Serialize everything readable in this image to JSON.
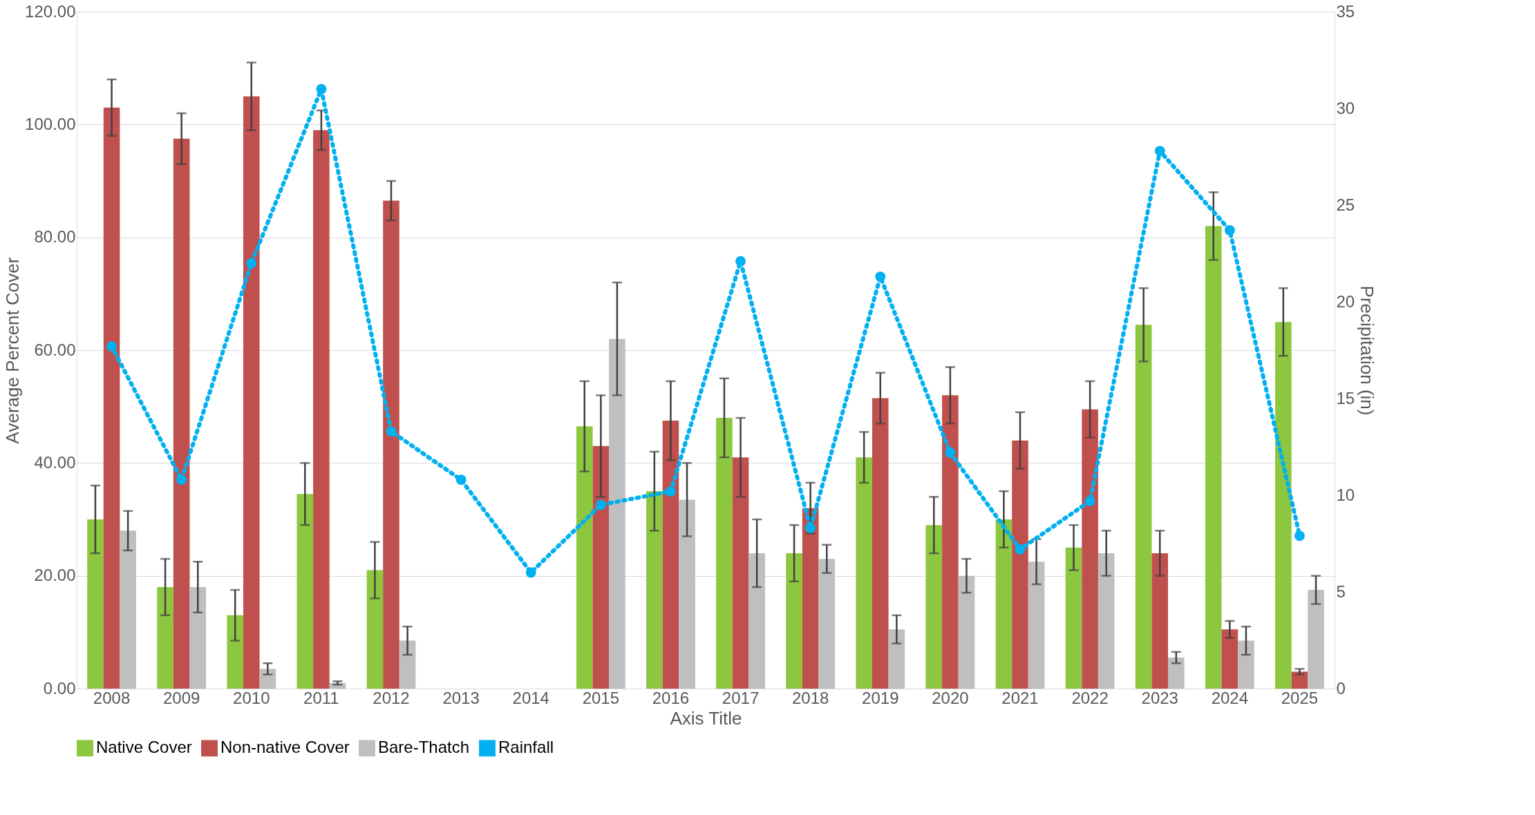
{
  "chart_data": {
    "type": "bar",
    "xlabel": "Axis Title",
    "ylabel": "Average Percent Cover",
    "y2label": "Precipitation (in)",
    "categories": [
      "2008",
      "2009",
      "2010",
      "2011",
      "2012",
      "2013",
      "2014",
      "2015",
      "2016",
      "2017",
      "2018",
      "2019",
      "2020",
      "2021",
      "2022",
      "2023",
      "2024",
      "2025"
    ],
    "series": [
      {
        "name": "Native Cover",
        "color": "#8dc63f",
        "values": [
          30,
          18,
          13,
          34.5,
          21,
          null,
          null,
          46.5,
          35,
          48,
          24,
          41,
          29,
          30,
          25,
          64.5,
          82,
          65
        ],
        "errors": [
          6,
          5,
          4.5,
          5.5,
          5,
          null,
          null,
          8,
          7,
          7,
          5,
          4.5,
          5,
          5,
          4,
          6.5,
          6,
          6
        ]
      },
      {
        "name": "Non-native Cover",
        "color": "#c0504d",
        "values": [
          103,
          97.5,
          105,
          99,
          86.5,
          null,
          null,
          43,
          47.5,
          41,
          32,
          51.5,
          52,
          44,
          49.5,
          24,
          10.5,
          3
        ],
        "errors": [
          5,
          4.5,
          6,
          3.5,
          3.5,
          null,
          null,
          9,
          7,
          7,
          4.5,
          4.5,
          5,
          5,
          5,
          4,
          1.5,
          0.5
        ]
      },
      {
        "name": "Bare-Thatch",
        "color": "#bfbfbf",
        "values": [
          28,
          18,
          3.5,
          1,
          8.5,
          null,
          null,
          62,
          33.5,
          24,
          23,
          10.5,
          20,
          22.5,
          24,
          5.5,
          8.5,
          17.5
        ],
        "errors": [
          3.5,
          4.5,
          1,
          0.3,
          2.5,
          null,
          null,
          10,
          6.5,
          6,
          2.5,
          2.5,
          3,
          4,
          4,
          1,
          2.5,
          2.5
        ]
      },
      {
        "name": "Rainfall",
        "type": "line",
        "axis": "y2",
        "color": "#00b0f0",
        "line_style": "dotted",
        "marker": "circle",
        "values": [
          17.7,
          10.8,
          22.0,
          31.0,
          13.3,
          10.8,
          6.0,
          9.5,
          10.2,
          22.1,
          8.3,
          21.3,
          12.2,
          7.2,
          9.7,
          27.8,
          23.7,
          7.9
        ]
      }
    ],
    "ylim": [
      0,
      120
    ],
    "yticks": [
      {
        "value": 0,
        "label": "0.00"
      },
      {
        "value": 20,
        "label": "20.00"
      },
      {
        "value": 40,
        "label": "40.00"
      },
      {
        "value": 60,
        "label": "60.00"
      },
      {
        "value": 80,
        "label": "80.00"
      },
      {
        "value": 100,
        "label": "100.00"
      },
      {
        "value": 120,
        "label": "120.00"
      }
    ],
    "y2lim": [
      0,
      35
    ],
    "y2ticks": [
      0,
      5,
      10,
      15,
      20,
      25,
      30,
      35
    ],
    "grid": "y",
    "legend": "bottom"
  }
}
